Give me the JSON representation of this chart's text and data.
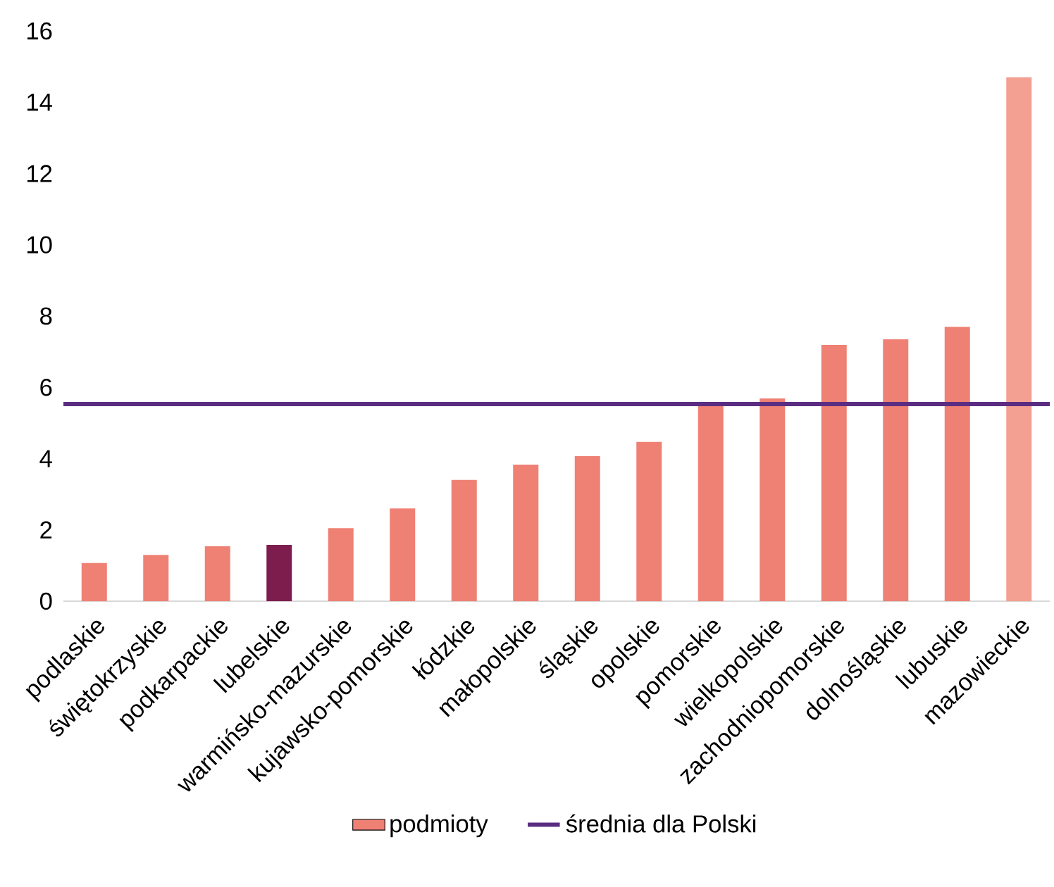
{
  "chart_data": {
    "type": "bar",
    "categories": [
      "podlaskie",
      "świętokrzyskie",
      "podkarpackie",
      "lubelskie",
      "warmińsko-mazurskie",
      "kujawsko-pomorskie",
      "łódzkie",
      "małopolskie",
      "śląskie",
      "opolskie",
      "pomorskie",
      "wielkopolskie",
      "zachodniopomorskie",
      "dolnośląskie",
      "lubuskie",
      "mazowieckie"
    ],
    "series": [
      {
        "name": "podmioty",
        "color": "#ef8074",
        "colors": [
          "#ef8074",
          "#ef8074",
          "#ef8074",
          "#7d1d4e",
          "#ef8074",
          "#ef8074",
          "#ef8074",
          "#ef8074",
          "#ef8074",
          "#ef8074",
          "#ef8074",
          "#ef8074",
          "#ef8074",
          "#ef8074",
          "#ef8074",
          "#f3a092"
        ],
        "values": [
          1.07,
          1.3,
          1.54,
          1.58,
          2.05,
          2.6,
          3.4,
          3.83,
          4.07,
          4.47,
          5.5,
          5.69,
          7.19,
          7.35,
          7.7,
          14.7
        ]
      }
    ],
    "ref_lines": [
      {
        "axis": "y",
        "value": 5.53,
        "label": "średnia dla Polski",
        "color": "#5b2d82"
      }
    ],
    "ylim": [
      0,
      16
    ],
    "yticks": [
      0,
      2,
      4,
      6,
      8,
      10,
      12,
      14,
      16
    ],
    "legend": "bottom",
    "grid": false
  }
}
